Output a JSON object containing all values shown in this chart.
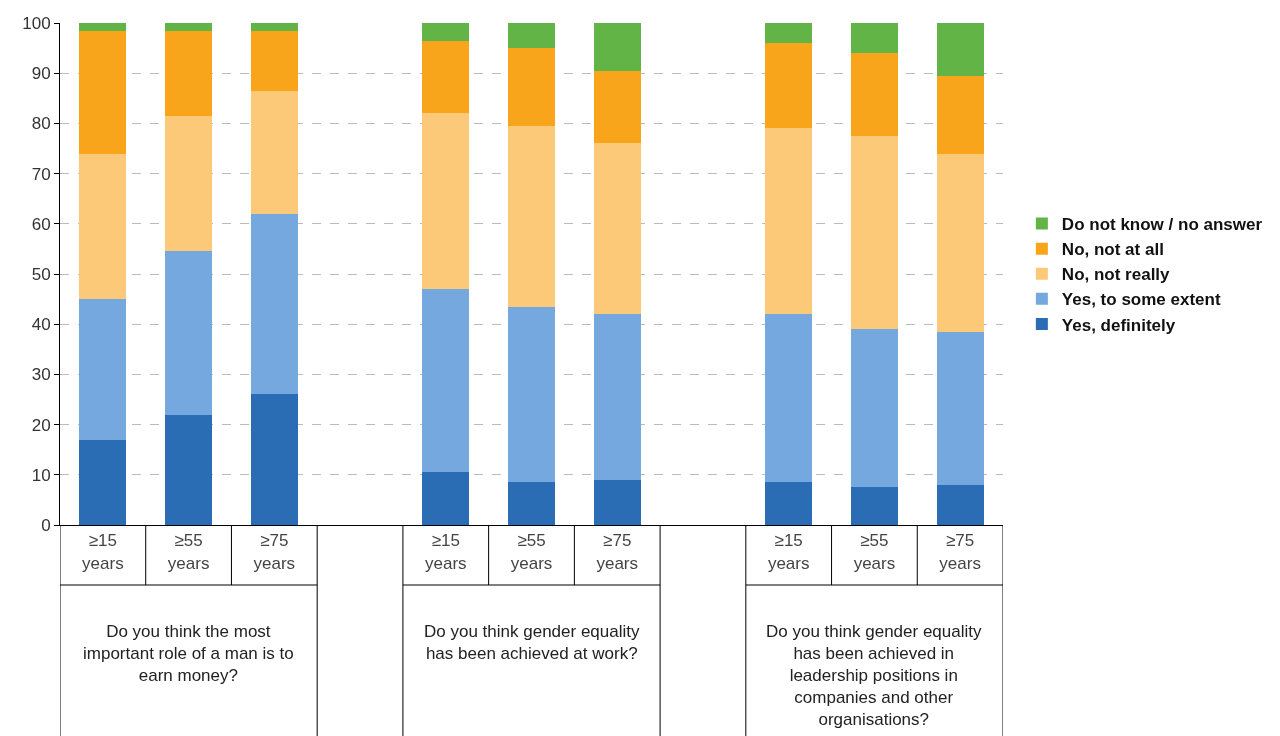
{
  "chart_data": {
    "type": "bar",
    "stacked": true,
    "categories": [
      "≥15 years",
      "≥55 years",
      "≥75 years",
      null,
      "≥15 years",
      "≥55 years",
      "≥75 years",
      null,
      "≥15 years",
      "≥55 years",
      "≥75 years"
    ],
    "series": [
      {
        "name": "Yes, definitely",
        "color": "#2a6db5",
        "values": [
          17,
          22,
          26,
          null,
          10.5,
          8.5,
          9,
          null,
          8.5,
          7.5,
          8
        ]
      },
      {
        "name": "Yes, to some extent",
        "color": "#74a8de",
        "values": [
          28,
          32.5,
          36,
          null,
          36.5,
          35,
          33,
          null,
          33.5,
          31.5,
          30.5
        ]
      },
      {
        "name": "No, not really",
        "color": "#fbc977",
        "values": [
          29,
          27,
          24.5,
          null,
          35,
          36,
          34,
          null,
          37,
          38.5,
          35.5
        ]
      },
      {
        "name": "No, not at all",
        "color": "#f9a51b",
        "values": [
          24.5,
          17,
          12,
          null,
          14.5,
          15.5,
          14.5,
          null,
          17,
          16.5,
          15.5
        ]
      },
      {
        "name": "Do not know / no answer",
        "color": "#62b446",
        "values": [
          1.5,
          1.5,
          1.5,
          null,
          3.5,
          5,
          9.5,
          null,
          4,
          6,
          10.5
        ]
      }
    ],
    "ylim": [
      0,
      100
    ],
    "yticks": [
      0,
      10,
      20,
      30,
      40,
      50,
      60,
      70,
      80,
      90,
      100
    ],
    "grid": "y",
    "legend": "right",
    "annotations": [
      "Do you think the most important role of a man is to earn money?",
      "Do you think gender equality has been achieved at work?",
      "Do you think gender equality has been achieved in leadership positions in companies and other organisations?"
    ]
  }
}
